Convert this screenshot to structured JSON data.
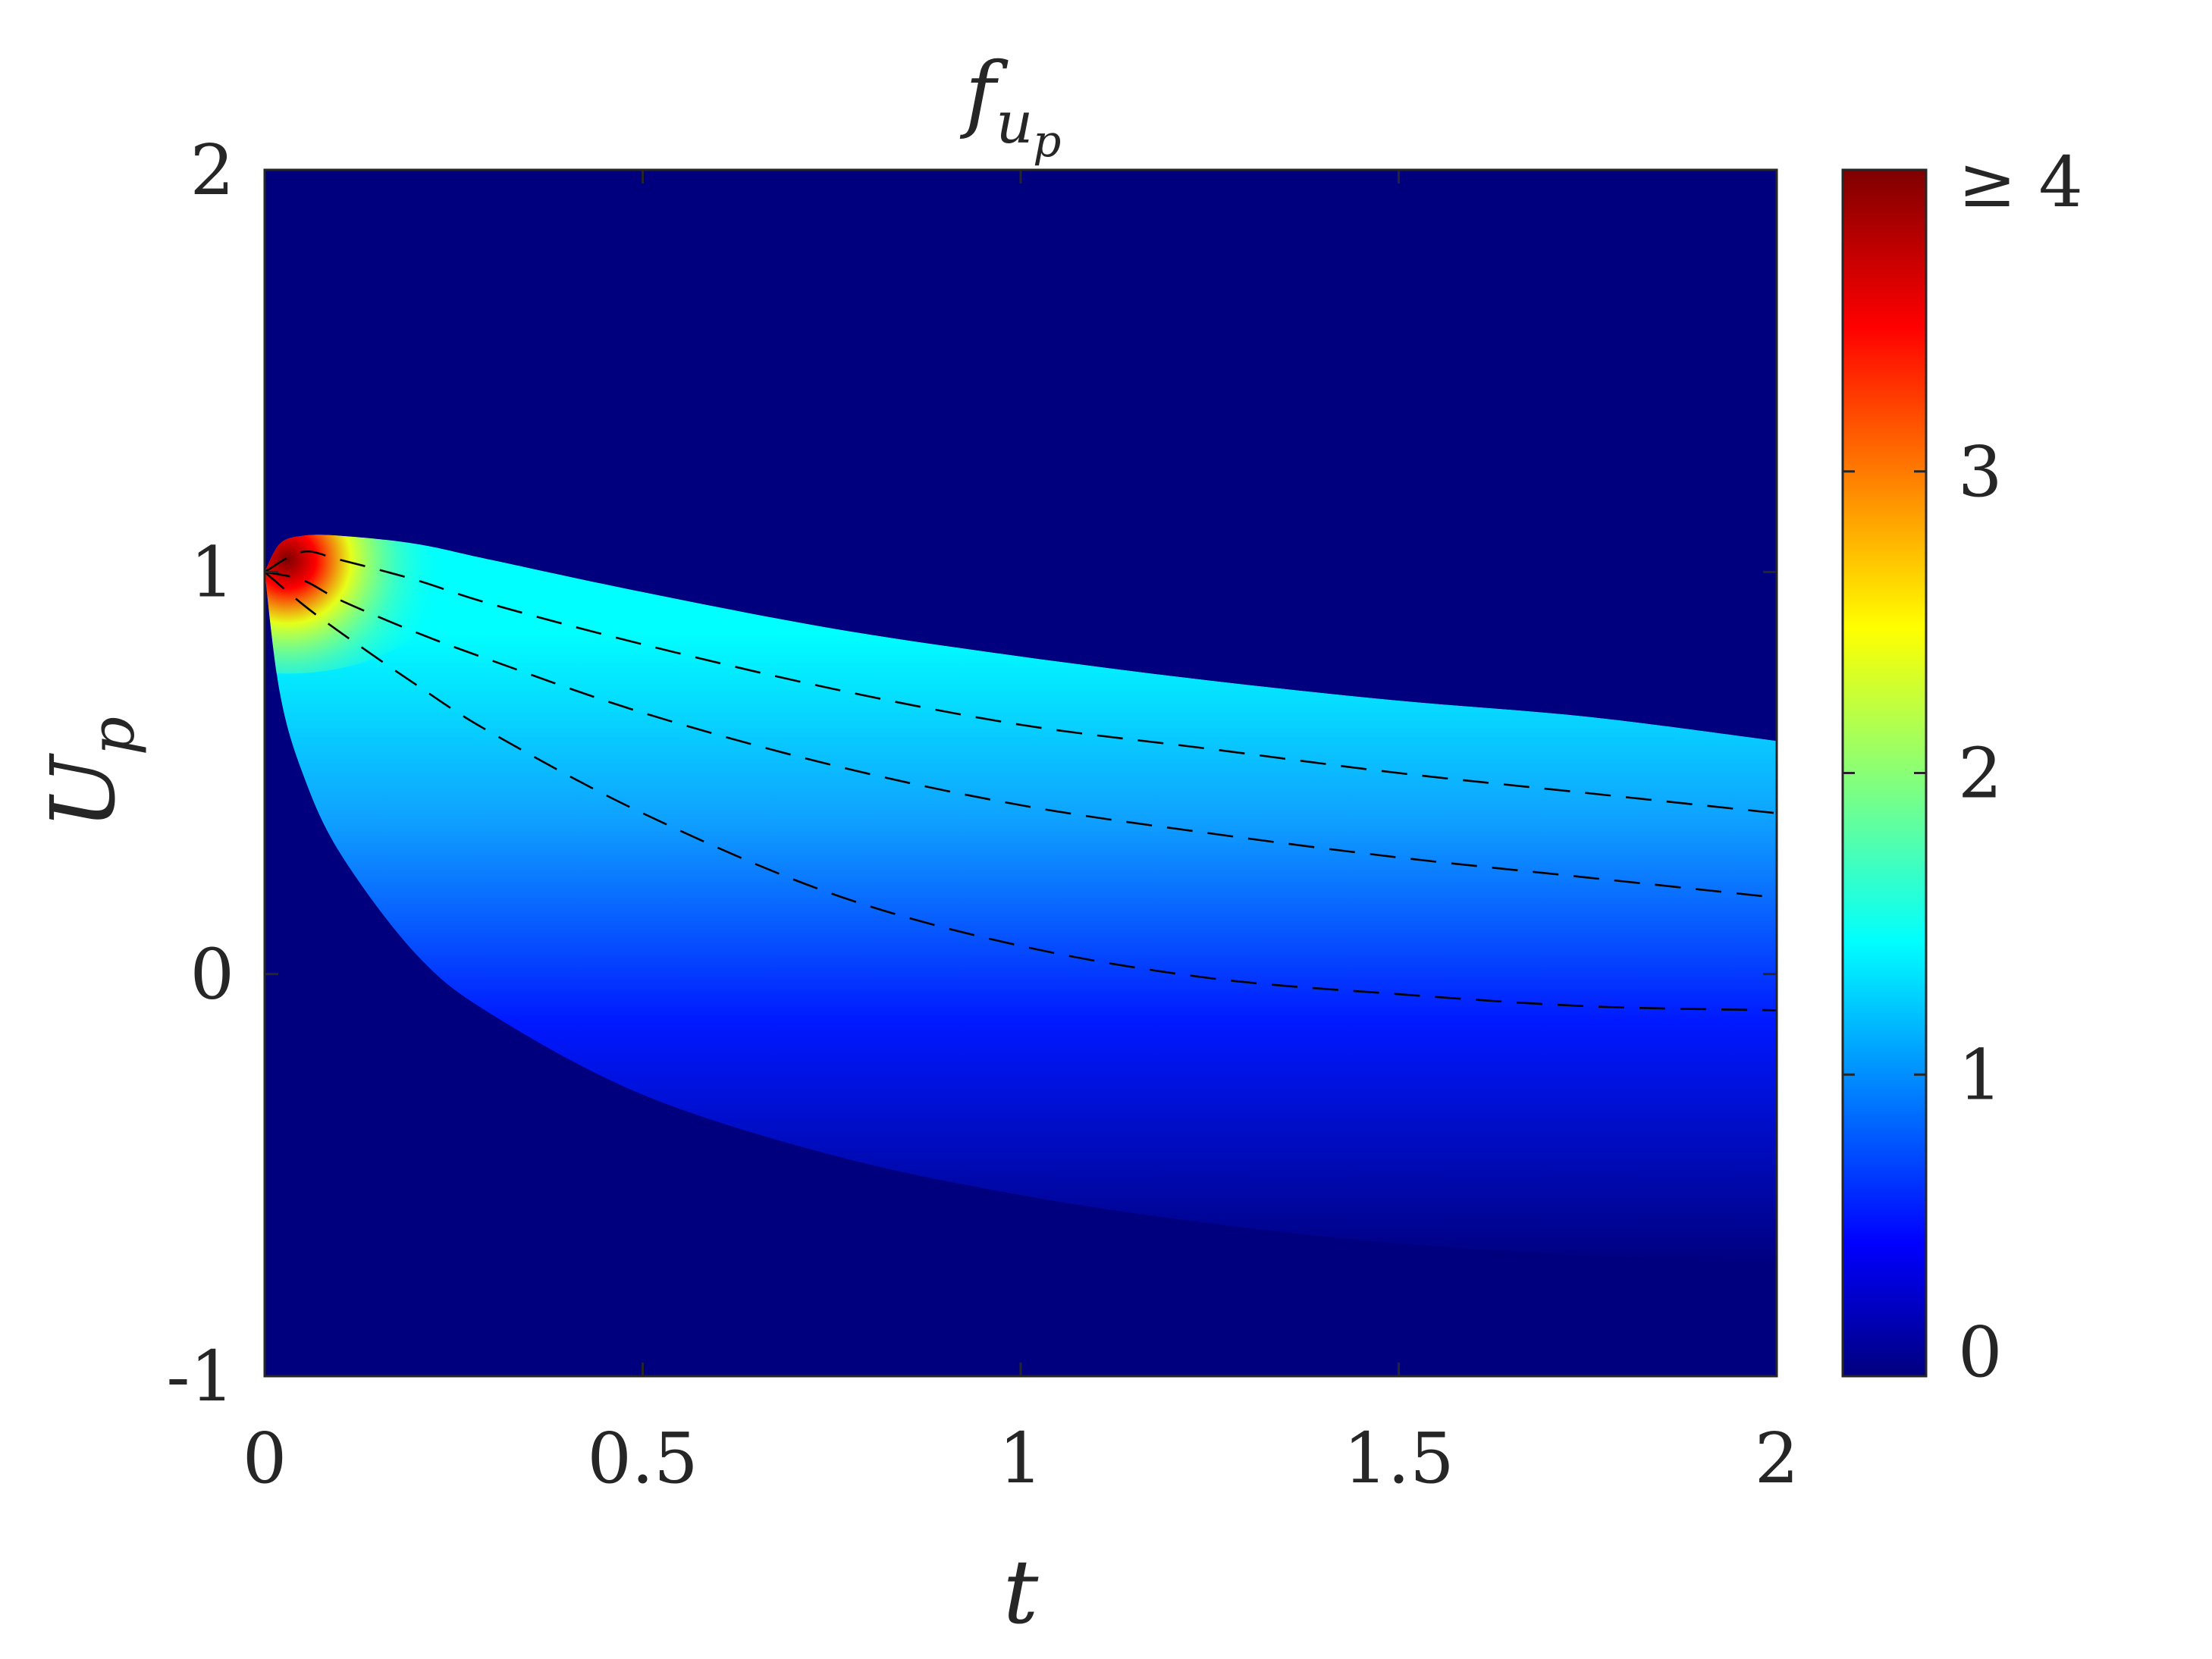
{
  "chart_data": {
    "type": "heatmap",
    "title": "f",
    "title_subscript": "u",
    "title_subsubscript": "p",
    "xlabel": "t",
    "ylabel": "U",
    "ylabel_subscript": "p",
    "xlim": [
      0,
      2
    ],
    "ylim": [
      -1,
      2
    ],
    "x_ticks": [
      0,
      0.5,
      1,
      1.5,
      2
    ],
    "x_tick_labels": [
      "0",
      "0.5",
      "1",
      "1.5",
      "2"
    ],
    "y_ticks": [
      -1,
      0,
      1,
      2
    ],
    "y_tick_labels": [
      "-1",
      "0",
      "1",
      "2"
    ],
    "colormap": "jet",
    "clim": [
      0,
      4
    ],
    "colorbar_ticks": [
      0,
      1,
      2,
      3,
      4
    ],
    "colorbar_tick_labels": [
      "0",
      "1",
      "2",
      "3",
      "≥ 4"
    ],
    "background_color": "#00007f",
    "support_upper": {
      "t": [
        0,
        0.02,
        0.05,
        0.1,
        0.2,
        0.3,
        0.5,
        0.75,
        1.0,
        1.25,
        1.5,
        1.75,
        2.0
      ],
      "u": [
        1.0,
        1.07,
        1.09,
        1.09,
        1.07,
        1.03,
        0.95,
        0.86,
        0.79,
        0.73,
        0.68,
        0.64,
        0.58
      ]
    },
    "support_lower": {
      "t": [
        0,
        0.02,
        0.05,
        0.1,
        0.2,
        0.3,
        0.5,
        0.75,
        1.0,
        1.25,
        1.5,
        1.75,
        2.0
      ],
      "u": [
        1.0,
        0.7,
        0.5,
        0.3,
        0.05,
        -0.1,
        -0.3,
        -0.45,
        -0.55,
        -0.62,
        -0.67,
        -0.7,
        -0.72
      ]
    },
    "dashed_lines": [
      {
        "t": [
          0,
          0.05,
          0.1,
          0.2,
          0.3,
          0.5,
          0.75,
          1.0,
          1.25,
          1.5,
          1.75,
          2.0
        ],
        "u": [
          1.0,
          1.05,
          1.03,
          0.98,
          0.92,
          0.82,
          0.71,
          0.62,
          0.56,
          0.5,
          0.45,
          0.4
        ]
      },
      {
        "t": [
          0,
          0.05,
          0.1,
          0.2,
          0.3,
          0.5,
          0.75,
          1.0,
          1.25,
          1.5,
          1.75,
          2.0
        ],
        "u": [
          1.0,
          0.98,
          0.93,
          0.85,
          0.78,
          0.65,
          0.52,
          0.42,
          0.35,
          0.29,
          0.24,
          0.19
        ]
      },
      {
        "t": [
          0,
          0.05,
          0.1,
          0.2,
          0.3,
          0.5,
          0.75,
          1.0,
          1.25,
          1.5,
          1.75,
          2.0
        ],
        "u": [
          1.0,
          0.92,
          0.85,
          0.72,
          0.6,
          0.4,
          0.2,
          0.07,
          -0.01,
          -0.05,
          -0.08,
          -0.09
        ]
      }
    ]
  }
}
